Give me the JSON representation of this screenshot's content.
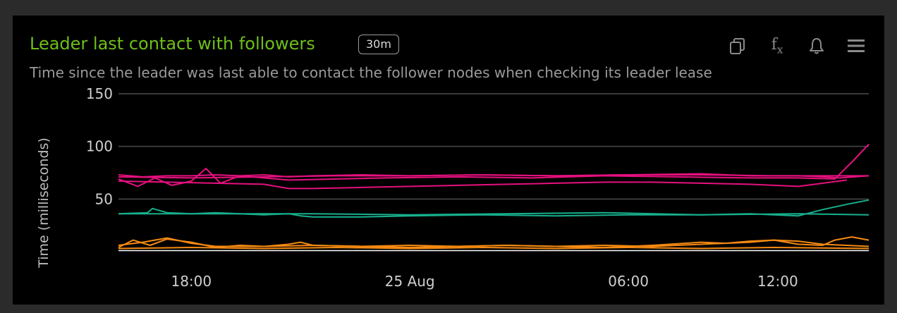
{
  "panel": {
    "title": "Leader last contact with followers",
    "range_badge": "30m",
    "subtitle": "Time since the leader was last able to contact the follower nodes when checking its leader lease",
    "title_color": "#6fbf1a",
    "toolbar": [
      {
        "name": "duplicate-icon",
        "label": "duplicate"
      },
      {
        "name": "function-icon",
        "label": "fx"
      },
      {
        "name": "bell-icon",
        "label": "alerts"
      },
      {
        "name": "menu-icon",
        "label": "menu"
      }
    ]
  },
  "chart_data": {
    "type": "line",
    "title": "Leader last contact with followers",
    "ylabel": "Time (milliseconds)",
    "xlabel": "",
    "ylim": [
      0,
      160
    ],
    "yticks": [
      50,
      100,
      150
    ],
    "x_range": [
      0,
      30.9
    ],
    "x_unit": "hours after 24 Aug 15:00",
    "xtick_positions": [
      3,
      12,
      21,
      27.15
    ],
    "xtick_labels": [
      "18:00",
      "25 Aug",
      "06:00",
      "12:00"
    ],
    "grid": "horizontal",
    "legend": "none",
    "colors": {
      "magenta": "#e5107e",
      "teal": "#17b08d",
      "orange": "#f58a12",
      "white": "#ffffff"
    },
    "series": [
      {
        "color": "#e5107e",
        "x": [
          0,
          1,
          2,
          3,
          4,
          5,
          6,
          7,
          8,
          10,
          12,
          15,
          18,
          21,
          24,
          26,
          28,
          29,
          29.7,
          30.3,
          30.9
        ],
        "y": [
          73,
          71,
          72,
          72,
          73,
          72,
          73,
          71,
          72,
          73,
          72,
          73,
          72,
          73,
          74,
          72,
          72,
          71,
          70,
          71,
          72
        ]
      },
      {
        "color": "#e5107e",
        "x": [
          0,
          0.8,
          1.5,
          2.2,
          3,
          3.6,
          4.2,
          5,
          6,
          7,
          9,
          11,
          14,
          17,
          20,
          23,
          26,
          28,
          29.5,
          30.2,
          30.9
        ],
        "y": [
          69,
          62,
          70,
          63,
          67,
          79,
          65,
          72,
          70,
          68,
          69,
          70,
          71,
          70,
          72,
          71,
          70,
          70,
          69,
          85,
          102
        ]
      },
      {
        "color": "#e5107e",
        "x": [
          0,
          2,
          4,
          6,
          7,
          8,
          10,
          12,
          14,
          16,
          18,
          20,
          22,
          24,
          26,
          28,
          30
        ],
        "y": [
          67,
          66,
          65,
          64,
          60,
          60,
          61,
          62,
          63,
          64,
          65,
          66,
          66,
          65,
          64,
          62,
          68
        ]
      },
      {
        "color": "#e5107e",
        "x": [
          0,
          3,
          6,
          9,
          12,
          15,
          18,
          21,
          24,
          27,
          30.9
        ],
        "y": [
          71,
          70,
          71,
          72,
          72,
          73,
          72,
          73,
          73,
          72,
          72
        ]
      },
      {
        "color": "#17b08d",
        "x": [
          0,
          1.2,
          1.4,
          2,
          3,
          4,
          5,
          6,
          7,
          7.5,
          8,
          10,
          12,
          15,
          18,
          21,
          24,
          26,
          27,
          28,
          29,
          30,
          30.9
        ],
        "y": [
          36,
          37,
          41,
          37,
          36,
          37,
          36,
          35,
          36,
          34,
          33,
          33,
          34,
          35,
          34,
          35,
          35,
          36,
          35,
          34,
          40,
          45,
          49
        ]
      },
      {
        "color": "#17b08d",
        "x": [
          0,
          4,
          8,
          12,
          16,
          20,
          24,
          28,
          30.9
        ],
        "y": [
          36,
          36,
          36,
          35,
          36,
          37,
          35,
          36,
          35
        ]
      },
      {
        "color": "#f58a12",
        "x": [
          0,
          0.6,
          1.3,
          2,
          3,
          4,
          5,
          6,
          7,
          7.5,
          8,
          10,
          12,
          14,
          16,
          18,
          20,
          22,
          24,
          25,
          26,
          27,
          28,
          29,
          29.5,
          30.2,
          30.9
        ],
        "y": [
          4,
          11,
          6,
          12,
          9,
          4,
          6,
          5,
          7,
          9,
          6,
          5,
          4,
          5,
          6,
          5,
          4,
          6,
          9,
          8,
          10,
          11,
          7,
          6,
          11,
          14,
          11
        ]
      },
      {
        "color": "#f58a12",
        "x": [
          0,
          1,
          2,
          3,
          4,
          6,
          8,
          10,
          12,
          14,
          16,
          18,
          20,
          22,
          24,
          26,
          27,
          28,
          29,
          30.9
        ],
        "y": [
          6,
          9,
          13,
          8,
          5,
          5,
          6,
          5,
          6,
          5,
          6,
          5,
          6,
          5,
          7,
          9,
          11,
          10,
          7,
          5
        ]
      },
      {
        "color": "#f58a12",
        "x": [
          0,
          3,
          6,
          9,
          12,
          15,
          18,
          21,
          24,
          27,
          30.9
        ],
        "y": [
          3,
          4,
          3,
          4,
          3,
          4,
          3,
          4,
          3,
          4,
          3
        ]
      },
      {
        "color": "#ffffff",
        "x": [
          0,
          30.9
        ],
        "y": [
          1,
          1
        ]
      }
    ]
  }
}
